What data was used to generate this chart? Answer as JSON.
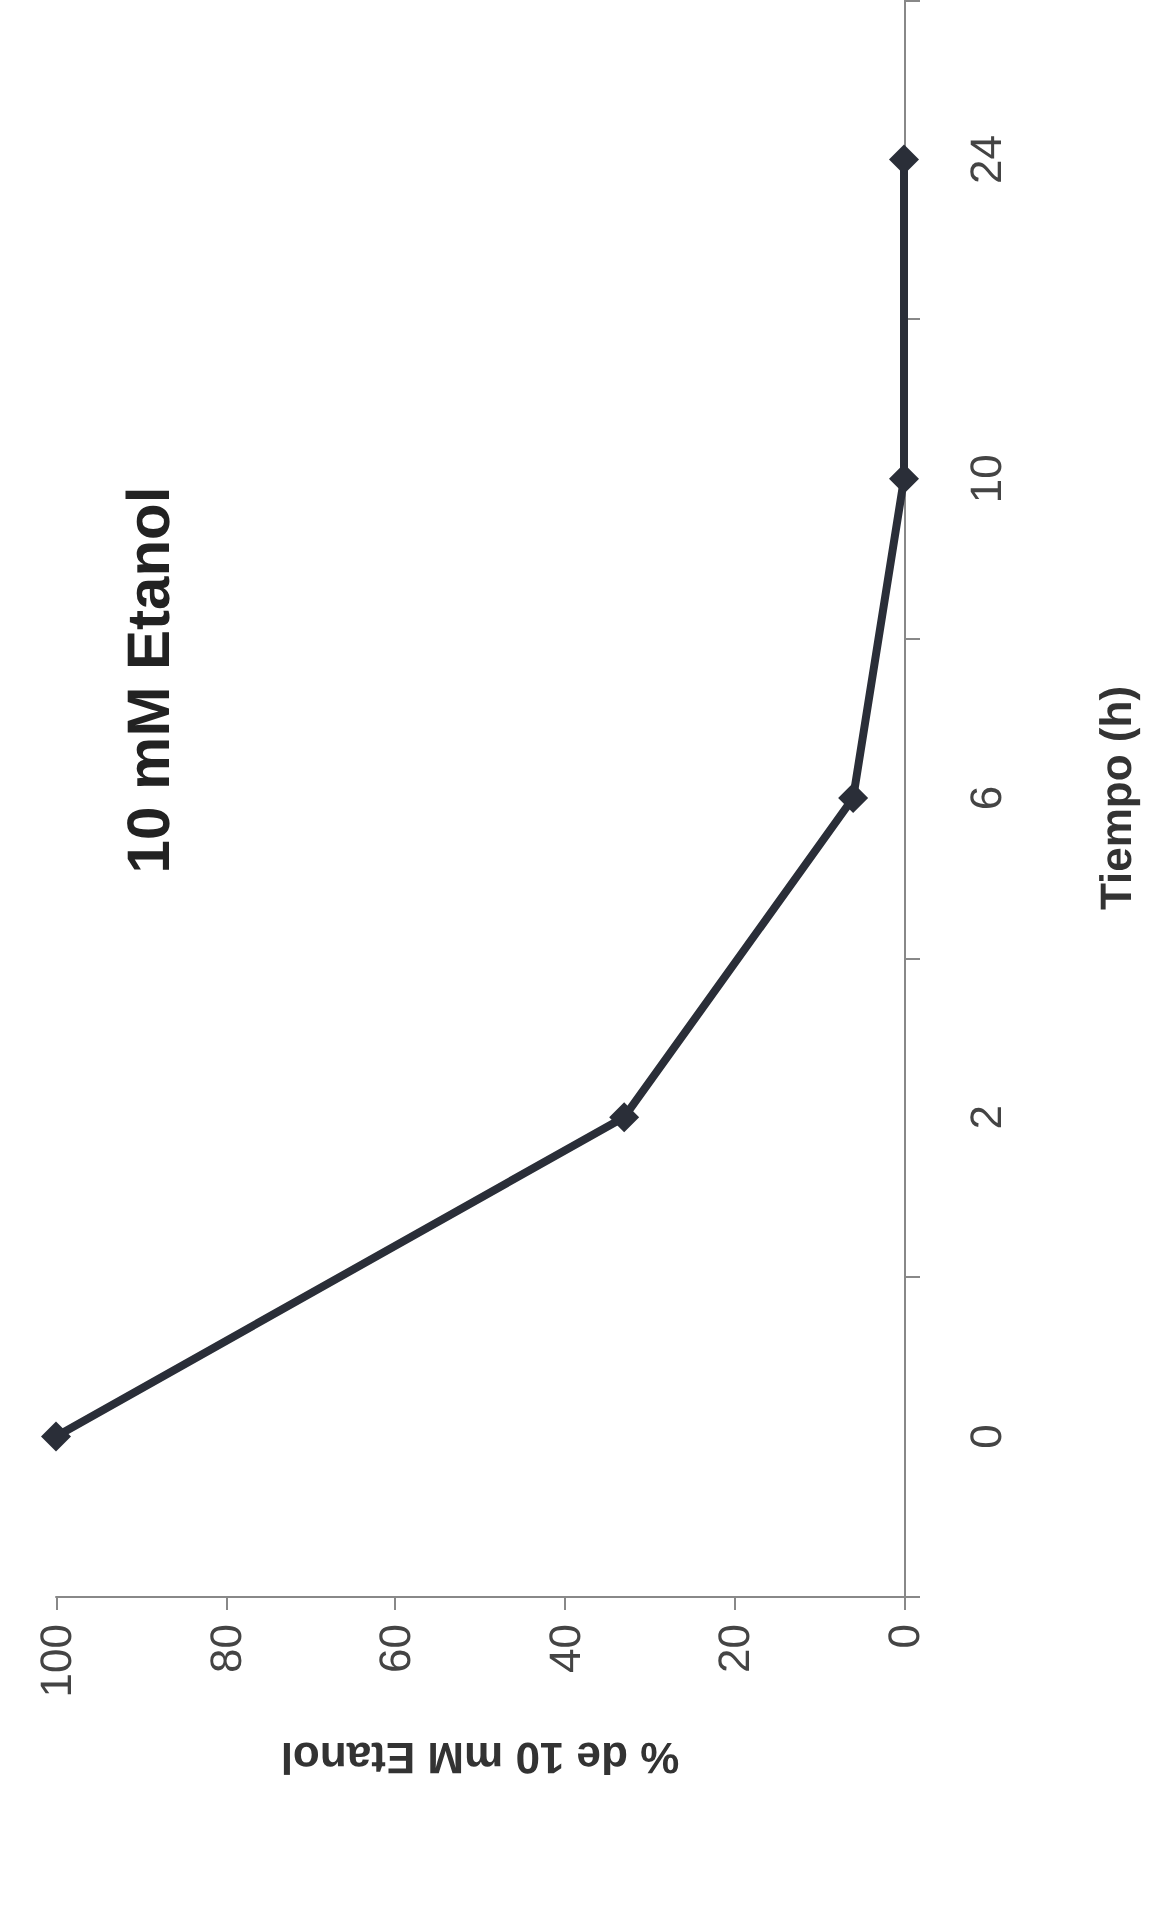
{
  "chart_data": {
    "type": "line",
    "orientation": "horizontal",
    "title": "10 mM Etanol",
    "xlabel": "% de 10 mM Etanol",
    "ylabel": "Tiempo (h)",
    "categories": [
      "24",
      "10",
      "6",
      "2",
      "0"
    ],
    "series": [
      {
        "color": "#2a2e38",
        "values": [
          0,
          0,
          6,
          33,
          100
        ]
      }
    ],
    "xlim": [
      100,
      0
    ],
    "xticks": [
      0,
      20,
      40,
      60,
      80,
      100
    ],
    "grid": false,
    "marker": "diamond",
    "line_style": "solid"
  }
}
